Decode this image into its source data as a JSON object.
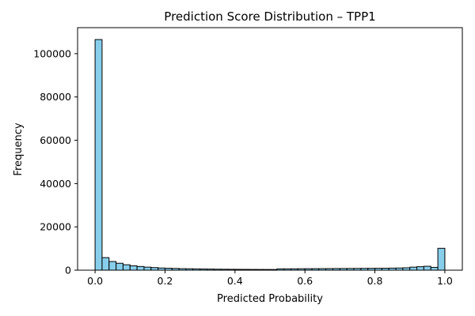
{
  "chart_data": {
    "type": "bar",
    "title": "Prediction Score Distribution – TPP1",
    "xlabel": "Predicted Probability",
    "ylabel": "Frequency",
    "xlim": [
      -0.05,
      1.05
    ],
    "ylim": [
      0,
      112000
    ],
    "xticks": [
      0.0,
      0.2,
      0.4,
      0.6,
      0.8,
      1.0
    ],
    "xtick_labels": [
      "0.0",
      "0.2",
      "0.4",
      "0.6",
      "0.8",
      "1.0"
    ],
    "yticks": [
      0,
      20000,
      40000,
      60000,
      80000,
      100000
    ],
    "ytick_labels": [
      "0",
      "20000",
      "40000",
      "60000",
      "80000",
      "100000"
    ],
    "bin_start": 0.0,
    "bin_width": 0.02,
    "values": [
      106500,
      5800,
      4000,
      3200,
      2500,
      2000,
      1700,
      1400,
      1200,
      1000,
      900,
      800,
      700,
      650,
      600,
      550,
      500,
      450,
      420,
      400,
      380,
      360,
      340,
      330,
      320,
      310,
      600,
      620,
      640,
      660,
      680,
      700,
      720,
      740,
      760,
      780,
      800,
      820,
      840,
      860,
      880,
      900,
      950,
      1000,
      1100,
      1400,
      1600,
      1800,
      1300,
      10100
    ],
    "bar_color": "#87ceeb",
    "edge_color": "#000000",
    "grid": false,
    "legend": "none"
  }
}
